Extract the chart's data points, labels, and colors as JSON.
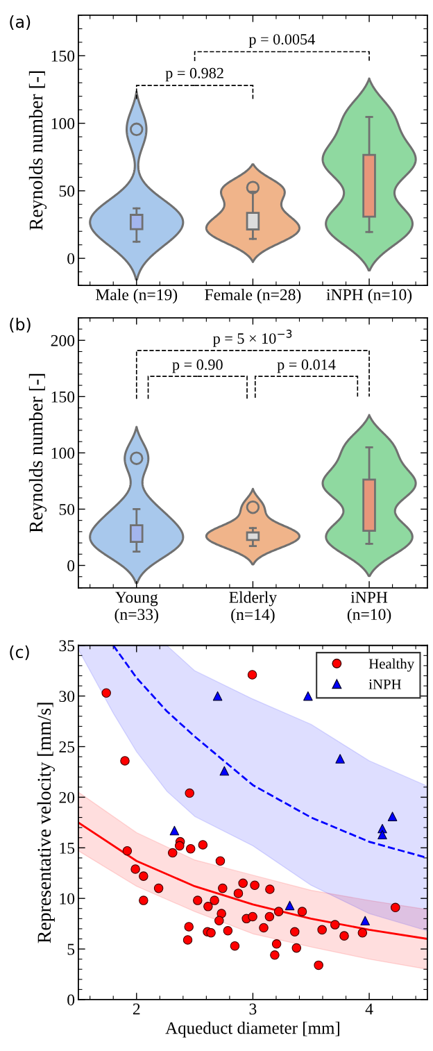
{
  "chart_data": [
    {
      "type": "box",
      "title": "(a)",
      "ylabel": "Reynolds number [-]",
      "categories": [
        "Male (n=19)",
        "Female (n=28)",
        "iNPH (n=10)"
      ],
      "colors": [
        "#a3b5ee",
        "#dcdcdc",
        "#e8967a"
      ],
      "boxes": [
        {
          "low": 12.3,
          "q1": 21.6,
          "median": 26.7,
          "q3": 32.2,
          "high": 37,
          "outliers": [
            95.5
          ]
        },
        {
          "low": 14.4,
          "q1": 21.4,
          "median": 23.6,
          "q3": 33.7,
          "high": 49.3,
          "outliers": [
            52.4
          ]
        },
        {
          "low": 19.5,
          "q1": 30.8,
          "median": 67.4,
          "q3": 76.6,
          "high": 104.7
        }
      ],
      "ylim": [
        -20,
        180
      ],
      "yticks": [
        0,
        50,
        100,
        150
      ],
      "annotations": [
        "p = 0.982",
        "p = 0.0054"
      ],
      "grid": false
    },
    {
      "type": "box",
      "title": "(b)",
      "ylabel": "Reynolds number [-]",
      "categories": [
        "Young\n(n=33)",
        "Elderly\n(n=14)",
        "iNPH\n(n=10)"
      ],
      "colors": [
        "#a3b5ee",
        "#dcdcdc",
        "#e8967a"
      ],
      "boxes": [
        {
          "low": 12.3,
          "q1": 20.9,
          "median": 24.8,
          "q3": 35.7,
          "high": 50,
          "outliers": [
            95.2
          ]
        },
        {
          "low": 17.2,
          "q1": 22.6,
          "median": 25.8,
          "q3": 29.3,
          "high": 33.2,
          "outliers": [
            51.7
          ]
        },
        {
          "low": 19.2,
          "q1": 30.8,
          "median": 67.2,
          "q3": 76.3,
          "high": 105
        }
      ],
      "ylim": [
        -20,
        220
      ],
      "yticks": [
        0,
        50,
        100,
        150,
        200
      ],
      "annotations": [
        "p = 5 × 10$^{−3}$",
        "p = 0.90",
        "p = 0.014"
      ],
      "grid": false
    },
    {
      "type": "scatter",
      "title": "(c)",
      "xlabel": "Aqueduct diameter [mm]",
      "ylabel": "Representative velocity [mm/s]",
      "xlim": [
        1.5,
        4.5
      ],
      "xticks": [
        2,
        3,
        4
      ],
      "ylim": [
        0,
        35
      ],
      "yticks": [
        0,
        5,
        10,
        15,
        20,
        25,
        30,
        35
      ],
      "grid": false,
      "legend": "top right",
      "series": [
        {
          "type": "line",
          "color": "#ff0000",
          "line_style": "solid",
          "x": [
            1.5,
            2,
            2.5,
            3,
            3.5,
            4,
            4.5
          ],
          "values": [
            17.5,
            13.7,
            11.2,
            9.4,
            8.0,
            6.9,
            6.0
          ],
          "upper": [
            20.5,
            16.5,
            13.8,
            12.3,
            10.8,
            9.8,
            8.9
          ],
          "lower": [
            14.7,
            11.2,
            8.7,
            6.5,
            5.2,
            4.0,
            3.0
          ]
        },
        {
          "type": "line",
          "color": "#0000ff",
          "line_style": "dashed",
          "x": [
            1.5,
            1.8,
            2,
            2.26,
            2.5,
            3,
            3.5,
            4,
            4.5
          ],
          "values": [
            null,
            35,
            31.8,
            28.5,
            26.0,
            21.2,
            18.0,
            15.6,
            14.0
          ],
          "upper": [
            35,
            35,
            35,
            35,
            32.5,
            29.7,
            27.2,
            23.6,
            21.1
          ],
          "lower": [
            34.6,
            28.3,
            24.5,
            20.6,
            18.1,
            15.2,
            11.3,
            8.5,
            6.8
          ]
        },
        {
          "type": "scatter",
          "name": "Healthy",
          "color": "#ff0000",
          "marker": "circle",
          "x": [
            1.74,
            1.9,
            2.995,
            2.456,
            1.92,
            1.99,
            2.06,
            2.19,
            2.06,
            2.31,
            2.375,
            2.37,
            2.465,
            2.57,
            2.72,
            2.74,
            2.67,
            2.525,
            2.615,
            2.73,
            2.71,
            2.45,
            2.44,
            2.61,
            2.64,
            2.785,
            2.845,
            2.875,
            2.915,
            3.016,
            2.945,
            2.998,
            3.093,
            3.146,
            3.143,
            3.222,
            3.204,
            3.188,
            3.36,
            3.375,
            3.424,
            3.565,
            3.595,
            3.706,
            3.785,
            3.942,
            4.225
          ],
          "values": [
            30.3,
            23.6,
            32.1,
            20.4,
            14.7,
            12.9,
            12.2,
            11.0,
            9.8,
            14.5,
            15.6,
            15.2,
            14.9,
            15.3,
            13.7,
            11.0,
            9.8,
            9.8,
            9.2,
            8.5,
            7.8,
            7.2,
            5.9,
            6.7,
            6.6,
            6.8,
            5.3,
            10.5,
            11.5,
            11.3,
            8.0,
            8.2,
            7.1,
            10.9,
            8.2,
            8.7,
            5.5,
            4.4,
            6.7,
            5.1,
            8.7,
            3.4,
            6.9,
            7.4,
            6.3,
            6.6,
            9.1
          ]
        },
        {
          "type": "scatter",
          "name": "iNPH",
          "color": "#0000ff",
          "marker": "triangle",
          "x": [
            2.697,
            3.474,
            2.755,
            3.75,
            4.2,
            2.326,
            4.113,
            4.113,
            3.317,
            3.965
          ],
          "values": [
            30.0,
            30.0,
            22.6,
            23.8,
            18.1,
            16.7,
            16.9,
            16.3,
            9.3,
            7.8
          ]
        }
      ]
    }
  ]
}
